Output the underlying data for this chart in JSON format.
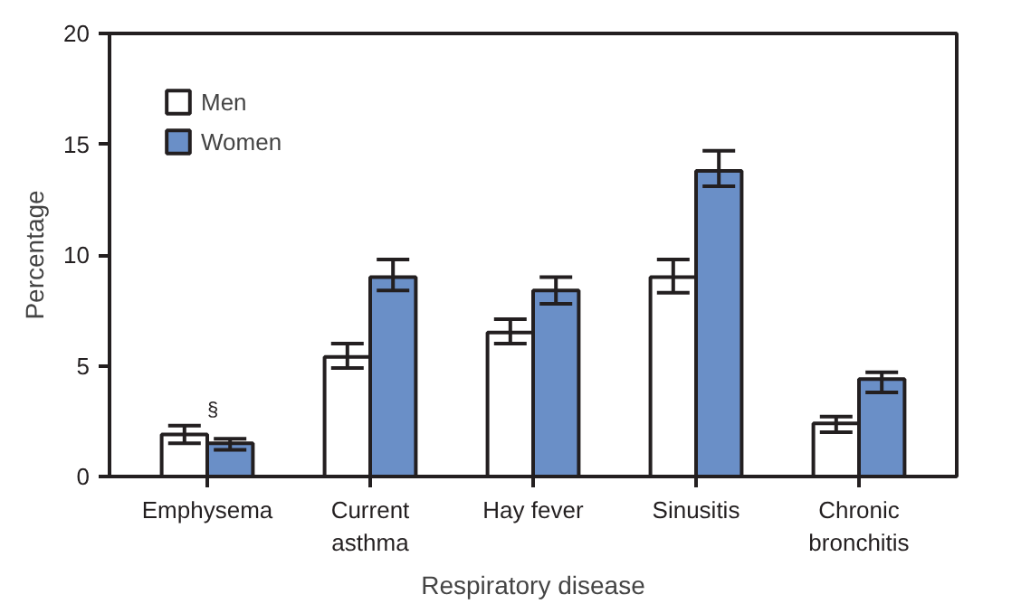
{
  "chart_data": {
    "type": "bar",
    "xlabel": "Respiratory disease",
    "ylabel": "Percentage",
    "categories": [
      "Emphysema",
      "Current\nasthma",
      "Hay fever",
      "Sinusitis",
      "Chronic\nbronchitis"
    ],
    "series": [
      {
        "name": "Men",
        "color": "#ffffff",
        "values": [
          1.9,
          5.4,
          6.5,
          9.0,
          2.4
        ],
        "errors": [
          [
            1.5,
            2.3
          ],
          [
            4.9,
            6.0
          ],
          [
            6.0,
            7.1
          ],
          [
            8.3,
            9.8
          ],
          [
            2.0,
            2.7
          ]
        ]
      },
      {
        "name": "Women",
        "color": "#6a8fc7",
        "values": [
          1.5,
          9.0,
          8.4,
          13.8,
          4.4
        ],
        "errors": [
          [
            1.2,
            1.7
          ],
          [
            8.4,
            9.8
          ],
          [
            7.8,
            9.0
          ],
          [
            13.1,
            14.7
          ],
          [
            3.8,
            4.7
          ]
        ]
      }
    ],
    "ylim": [
      0,
      20
    ],
    "yticks": [
      0,
      5,
      10,
      15,
      20
    ],
    "grid": false,
    "legend": "top left",
    "annotations": [
      {
        "text": "§",
        "x": "Emphysema",
        "y": 2.5
      }
    ]
  }
}
